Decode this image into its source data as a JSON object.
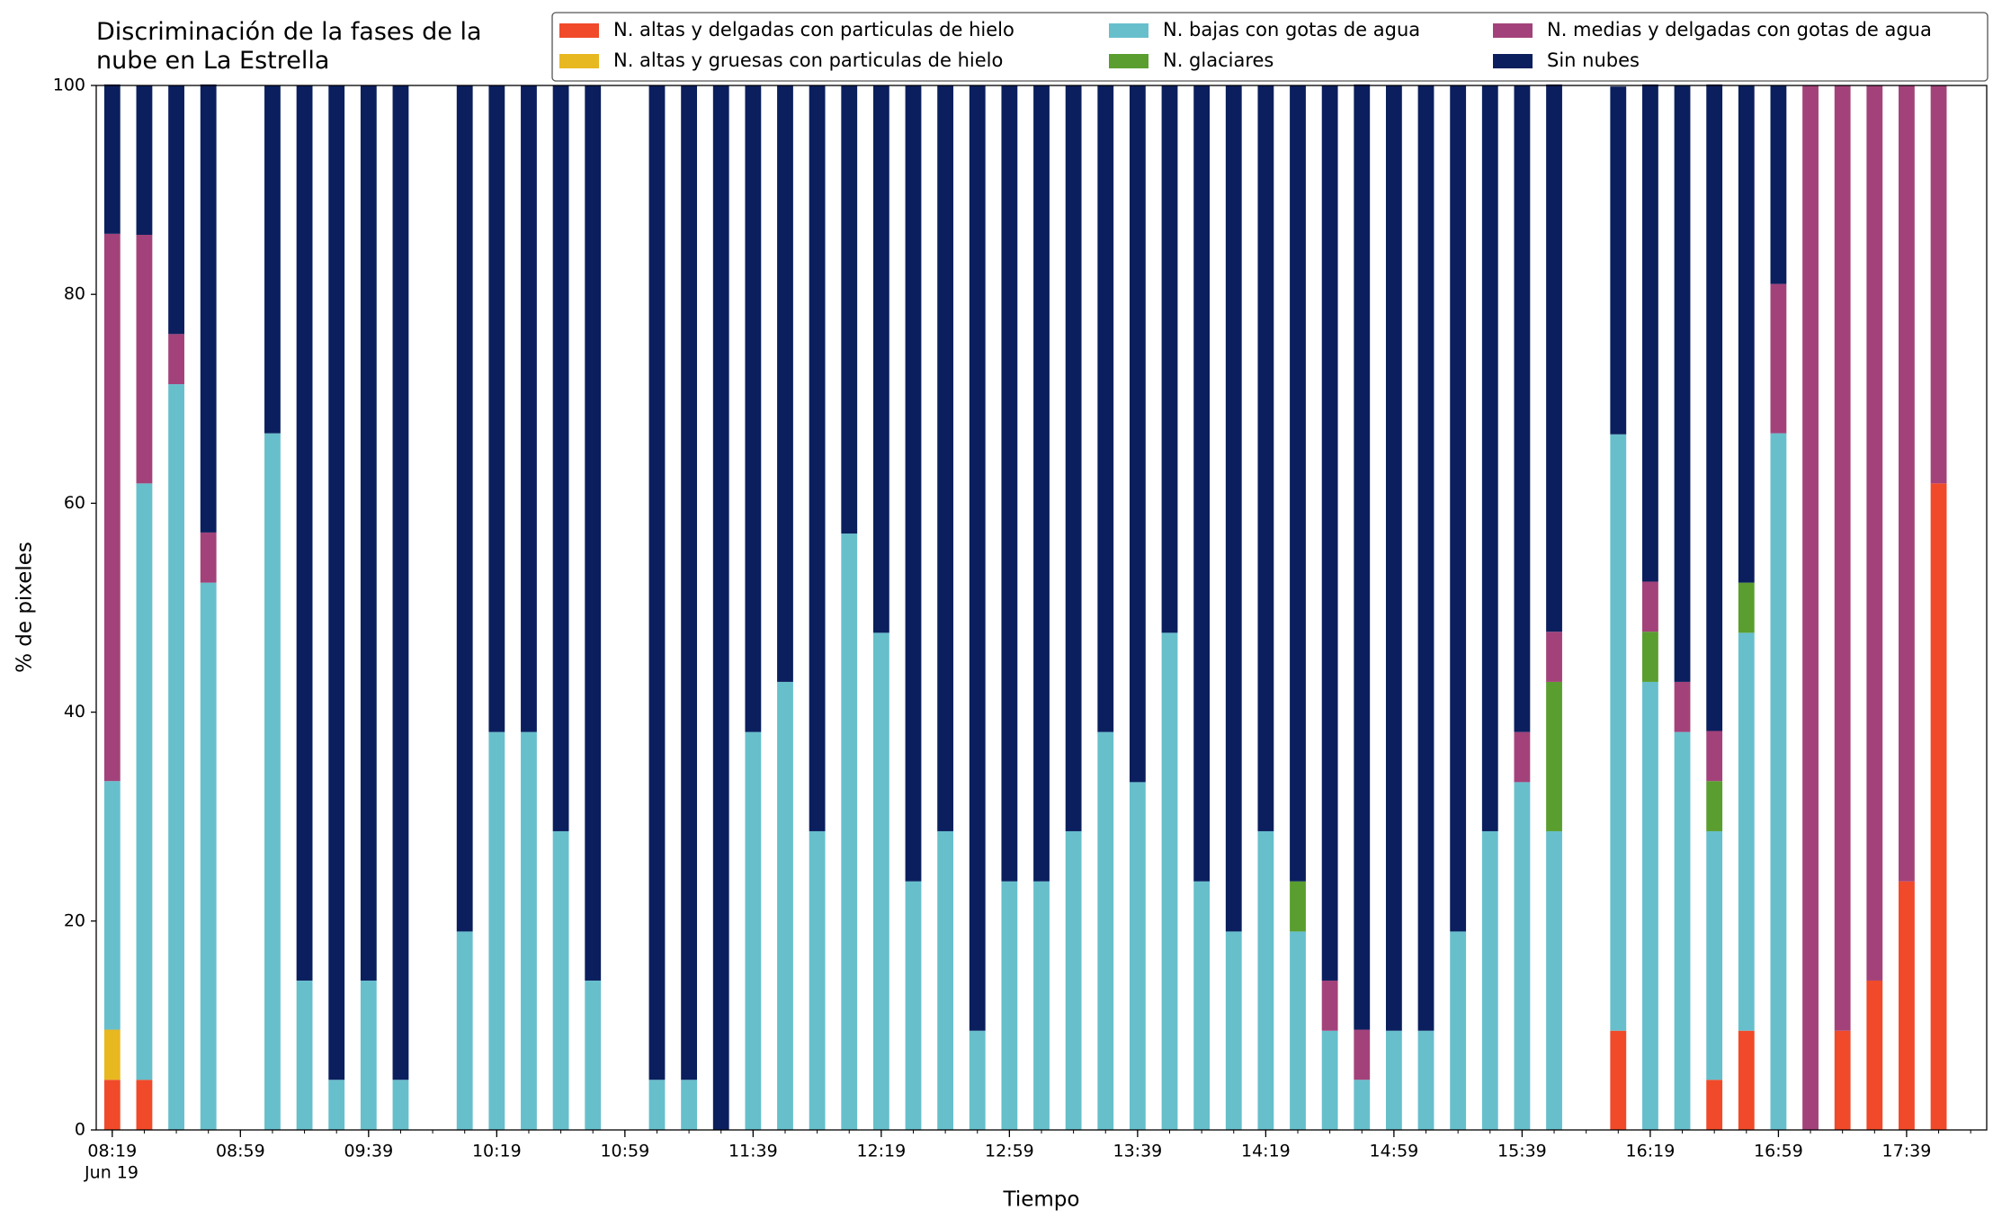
{
  "chart_data": {
    "type": "stacked_bar",
    "title": "Discriminación de la fases de la nube en La Estrella",
    "xlabel": "Tiempo",
    "ylabel": "% de pixeles",
    "date_label": "Jun 19",
    "x": [
      "08:19",
      "08:29",
      "08:39",
      "08:49",
      "09:09",
      "09:19",
      "09:29",
      "09:39",
      "09:49",
      "10:09",
      "10:19",
      "10:29",
      "10:39",
      "10:49",
      "11:09",
      "11:19",
      "11:29",
      "11:39",
      "11:49",
      "11:59",
      "12:09",
      "12:19",
      "12:29",
      "12:39",
      "12:49",
      "12:59",
      "13:09",
      "13:19",
      "13:29",
      "13:39",
      "13:49",
      "13:59",
      "14:09",
      "14:19",
      "14:29",
      "14:39",
      "14:49",
      "14:59",
      "15:09",
      "15:19",
      "15:29",
      "15:39",
      "15:49",
      "16:09",
      "16:19",
      "16:29",
      "16:39",
      "16:49",
      "16:59",
      "17:09",
      "17:19",
      "17:29",
      "17:39",
      "17:49"
    ],
    "series": [
      {
        "name": "N. altas y delgadas con particulas de hielo",
        "color": "#f04a2a",
        "values": [
          4.8,
          4.8,
          0,
          0,
          0,
          0,
          0,
          0,
          0,
          0,
          0,
          0,
          0,
          0,
          0,
          0,
          0,
          0,
          0,
          0,
          0,
          0,
          0,
          0,
          0,
          0,
          0,
          0,
          0,
          0,
          0,
          0,
          0,
          0,
          0,
          0,
          0,
          0,
          0,
          0,
          0,
          0,
          0,
          9.5,
          0,
          0,
          4.8,
          9.5,
          0,
          0,
          9.5,
          14.3,
          23.8,
          61.9
        ]
      },
      {
        "name": "N. altas y gruesas con particulas de hielo",
        "color": "#e8b820",
        "values": [
          4.8,
          0,
          0,
          0,
          0,
          0,
          0,
          0,
          0,
          0,
          0,
          0,
          0,
          0,
          0,
          0,
          0,
          0,
          0,
          0,
          0,
          0,
          0,
          0,
          0,
          0,
          0,
          0,
          0,
          0,
          0,
          0,
          0,
          0,
          0,
          0,
          0,
          0,
          0,
          0,
          0,
          0,
          0,
          0,
          0,
          0,
          0,
          0,
          0,
          0,
          0,
          0,
          0,
          0
        ]
      },
      {
        "name": "N. bajas con gotas de agua",
        "color": "#67bfcc",
        "values": [
          23.8,
          57.1,
          71.4,
          52.4,
          66.7,
          14.3,
          4.8,
          14.3,
          4.8,
          19.0,
          38.1,
          38.1,
          28.6,
          14.3,
          4.8,
          4.8,
          0,
          38.1,
          42.9,
          28.6,
          57.1,
          47.6,
          23.8,
          28.6,
          9.5,
          23.8,
          23.8,
          28.6,
          38.1,
          33.3,
          47.6,
          23.8,
          19.0,
          28.6,
          19.0,
          9.5,
          4.8,
          9.5,
          9.5,
          19.0,
          28.6,
          33.3,
          28.6,
          57.1,
          42.9,
          38.1,
          23.8,
          38.1,
          66.7,
          0,
          0,
          0,
          0,
          0
        ]
      },
      {
        "name": "N. glaciares",
        "color": "#5a9e2f",
        "values": [
          0,
          0,
          0,
          0,
          0,
          0,
          0,
          0,
          0,
          0,
          0,
          0,
          0,
          0,
          0,
          0,
          0,
          0,
          0,
          0,
          0,
          0,
          0,
          0,
          0,
          0,
          0,
          0,
          0,
          0,
          0,
          0,
          0,
          0,
          4.8,
          0,
          0,
          0,
          0,
          0,
          0,
          0,
          14.3,
          0,
          4.8,
          0,
          4.8,
          4.8,
          0,
          0,
          0,
          0,
          0,
          0
        ]
      },
      {
        "name": "N. medias y delgadas con gotas de agua",
        "color": "#a3427a",
        "values": [
          52.4,
          23.8,
          4.8,
          4.8,
          0,
          0,
          0,
          0,
          0,
          0,
          0,
          0,
          0,
          0,
          0,
          0,
          0,
          0,
          0,
          0,
          0,
          0,
          0,
          0,
          0,
          0,
          0,
          0,
          0,
          0,
          0,
          0,
          0,
          0,
          0,
          4.8,
          4.8,
          0,
          0,
          0,
          0,
          4.8,
          4.8,
          0,
          4.8,
          4.8,
          4.8,
          0,
          14.3,
          100,
          90.5,
          85.7,
          76.2,
          38.1
        ]
      },
      {
        "name": "Sin nubes",
        "color": "#0b1f5e",
        "values": [
          14.3,
          14.3,
          23.8,
          42.9,
          33.3,
          85.7,
          95.2,
          85.7,
          95.2,
          81.0,
          61.9,
          61.9,
          71.4,
          85.7,
          95.2,
          95.2,
          100,
          61.9,
          57.1,
          71.4,
          42.9,
          52.4,
          76.2,
          71.4,
          90.5,
          76.2,
          76.2,
          71.4,
          61.9,
          66.7,
          52.4,
          76.2,
          81.0,
          71.4,
          76.2,
          85.7,
          90.5,
          90.5,
          90.5,
          81.0,
          71.4,
          61.9,
          52.4,
          33.3,
          47.6,
          57.1,
          61.9,
          47.6,
          19.0,
          0,
          0,
          0,
          0,
          0
        ]
      }
    ],
    "xlim": [
      "08:14",
      "18:04"
    ],
    "xticks": [
      "08:19",
      "08:59",
      "09:39",
      "10:19",
      "10:59",
      "11:39",
      "12:19",
      "12:59",
      "13:39",
      "14:19",
      "14:59",
      "15:39",
      "16:19",
      "16:59",
      "17:39"
    ],
    "ylim": [
      0,
      100
    ],
    "yticks": [
      0,
      20,
      40,
      60,
      80,
      100
    ],
    "legend": "top"
  }
}
